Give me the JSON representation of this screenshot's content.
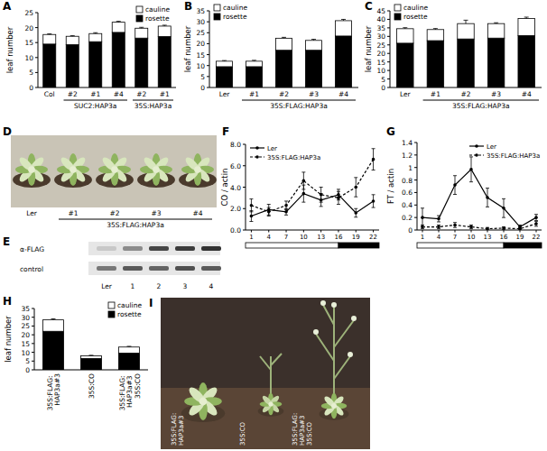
{
  "chart_data": [
    {
      "type": "bar",
      "title": "A",
      "stacked": true,
      "y_label": "leaf number",
      "categories": [
        "Col",
        "#2",
        "#1",
        "#4",
        "#2",
        "#1"
      ],
      "groups": [
        {
          "label": "SUC2:HAP3a",
          "from": 1,
          "to": 3
        },
        {
          "label": "35S:HAP3a",
          "from": 4,
          "to": 5
        }
      ],
      "series": [
        {
          "name": "rosette",
          "color": "#000000",
          "values": [
            14.5,
            14.3,
            15.3,
            18.4,
            16.5,
            17.0
          ],
          "errors": [
            0.2,
            0.2,
            0.2,
            0.3,
            0.2,
            0.2
          ]
        },
        {
          "name": "cauline",
          "color": "#ffffff",
          "values": [
            3.2,
            2.8,
            2.7,
            3.4,
            3.3,
            3.5
          ],
          "errors": [
            0.2,
            0.2,
            0.3,
            0.3,
            0.3,
            0.3
          ]
        }
      ],
      "ylim": [
        0,
        25
      ],
      "yticks": [
        0,
        5,
        10,
        15,
        20,
        25
      ],
      "legend": "upper right"
    },
    {
      "type": "bar",
      "title": "B",
      "stacked": true,
      "y_label": "leaf number",
      "categories": [
        "Ler",
        "#1",
        "#2",
        "#3",
        "#4"
      ],
      "groups": [
        {
          "label": "35S:FLAG:HAP3a",
          "from": 1,
          "to": 4
        }
      ],
      "series": [
        {
          "name": "rosette",
          "color": "#000000",
          "values": [
            9.5,
            9.5,
            17.0,
            17.0,
            23.5
          ],
          "errors": [
            0.3,
            0.3,
            0.4,
            0.3,
            0.5
          ]
        },
        {
          "name": "cauline",
          "color": "#ffffff",
          "values": [
            2.5,
            2.5,
            5.5,
            4.5,
            7.0
          ],
          "errors": [
            0.3,
            0.4,
            0.4,
            0.5,
            0.6
          ]
        }
      ],
      "ylim": [
        0,
        35
      ],
      "yticks": [
        0,
        5,
        10,
        15,
        20,
        25,
        30,
        35
      ],
      "legend": "upper left"
    },
    {
      "type": "bar",
      "title": "C",
      "stacked": true,
      "y_label": "leaf number",
      "categories": [
        "Ler",
        "#1",
        "#2",
        "#3",
        "#4"
      ],
      "groups": [
        {
          "label": "35S:FLAG:HAP3a",
          "from": 1,
          "to": 4
        }
      ],
      "series": [
        {
          "name": "rosette",
          "color": "#000000",
          "values": [
            26.0,
            27.5,
            28.5,
            29.0,
            30.5
          ],
          "errors": [
            0.5,
            0.6,
            0.6,
            0.6,
            0.6
          ]
        },
        {
          "name": "cauline",
          "color": "#ffffff",
          "values": [
            8.5,
            6.5,
            9.0,
            8.5,
            10.0
          ],
          "errors": [
            0.6,
            0.6,
            2.0,
            0.5,
            0.8
          ]
        }
      ],
      "ylim": [
        0,
        45
      ],
      "yticks": [
        0,
        5,
        10,
        15,
        20,
        25,
        30,
        35,
        40,
        45
      ],
      "legend": "upper left"
    },
    {
      "type": "photo",
      "title": "D",
      "labels": [
        "Ler",
        "#1",
        "#2",
        "#3",
        "#4"
      ],
      "groups": [
        {
          "label": "35S:FLAG:HAP3a",
          "from": 1,
          "to": 4
        }
      ]
    },
    {
      "type": "photo",
      "title": "E",
      "row_labels": [
        "α-FLAG",
        "control"
      ],
      "labels": [
        "Ler",
        "1",
        "2",
        "3",
        "4"
      ]
    },
    {
      "type": "line",
      "title": "F",
      "y_label": "CO / actin",
      "x": [
        1,
        4,
        7,
        10,
        13,
        16,
        19,
        22
      ],
      "xlim": [
        0,
        23
      ],
      "xticks": [
        1,
        4,
        7,
        10,
        13,
        16,
        19,
        22
      ],
      "light_period": [
        0,
        16
      ],
      "dark_period": [
        16,
        23
      ],
      "series": [
        {
          "name": "Ler",
          "color": "#000000",
          "line_style": "solid",
          "marker": "circle",
          "values": [
            1.3,
            1.9,
            1.7,
            3.4,
            2.8,
            3.3,
            1.6,
            2.7
          ],
          "errors": [
            0.5,
            0.5,
            0.3,
            0.8,
            0.6,
            0.5,
            0.4,
            0.6
          ]
        },
        {
          "name": "35S:FLAG:HAP3a",
          "color": "#000000",
          "line_style": "dashed",
          "marker": "circle",
          "values": [
            2.3,
            1.7,
            2.3,
            4.6,
            3.3,
            3.0,
            4.0,
            6.6
          ],
          "errors": [
            0.6,
            0.4,
            0.4,
            0.8,
            0.7,
            0.6,
            0.9,
            1.0
          ]
        }
      ],
      "ylim": [
        0,
        8
      ],
      "yticks": [
        {
          "value": 0,
          "label": "0.0"
        },
        {
          "value": 2,
          "label": "2.0"
        },
        {
          "value": 4,
          "label": "4.0"
        },
        {
          "value": 6,
          "label": "6.0"
        },
        {
          "value": 8,
          "label": "8.0"
        }
      ],
      "legend": "upper left"
    },
    {
      "type": "line",
      "title": "G",
      "y_label": "FT / actin",
      "x": [
        1,
        4,
        7,
        10,
        13,
        16,
        19,
        22
      ],
      "xlim": [
        0,
        23
      ],
      "xticks": [
        1,
        4,
        7,
        10,
        13,
        16,
        19,
        22
      ],
      "light_period": [
        0,
        16
      ],
      "dark_period": [
        16,
        23
      ],
      "series": [
        {
          "name": "Ler",
          "color": "#000000",
          "line_style": "solid",
          "marker": "circle",
          "values": [
            0.2,
            0.18,
            0.72,
            0.97,
            0.52,
            0.35,
            0.05,
            0.2
          ],
          "errors": [
            0.15,
            0.05,
            0.15,
            0.2,
            0.15,
            0.15,
            0.03,
            0.05
          ]
        },
        {
          "name": "35S:FLAG:HAP3a",
          "color": "#000000",
          "line_style": "dashed",
          "marker": "circle",
          "values": [
            0.05,
            0.05,
            0.08,
            0.05,
            0.02,
            0.03,
            0.02,
            0.1
          ],
          "errors": [
            0.03,
            0.03,
            0.04,
            0.03,
            0.02,
            0.02,
            0.02,
            0.04
          ]
        }
      ],
      "ylim": [
        0,
        1.4
      ],
      "yticks": [
        0,
        0.2,
        0.4,
        0.6,
        0.8,
        1,
        1.2,
        1.4
      ],
      "legend": "upper right"
    },
    {
      "type": "bar",
      "title": "H",
      "stacked": true,
      "y_label": "leaf number",
      "categories": [
        "35S:FLAG: HAP3a#3",
        "35S:CO",
        "35S:FLAG: HAP3a#3 35S:CO"
      ],
      "series": [
        {
          "name": "rosette",
          "color": "#000000",
          "values": [
            22.0,
            6.5,
            9.5
          ],
          "errors": [
            0.5,
            0.3,
            0.4
          ]
        },
        {
          "name": "cauline",
          "color": "#ffffff",
          "values": [
            6.5,
            1.5,
            3.5
          ],
          "errors": [
            0.6,
            0.3,
            0.4
          ]
        }
      ],
      "ylim": [
        0,
        35
      ],
      "yticks": [
        0,
        5,
        10,
        15,
        20,
        25,
        30,
        35
      ],
      "legend": "upper right"
    },
    {
      "type": "photo",
      "title": "I",
      "labels": [
        "35S:FLAG: HAP3a#3",
        "35S:CO",
        "35S:FLAG: HAP3a#3 35S:CO"
      ]
    }
  ]
}
